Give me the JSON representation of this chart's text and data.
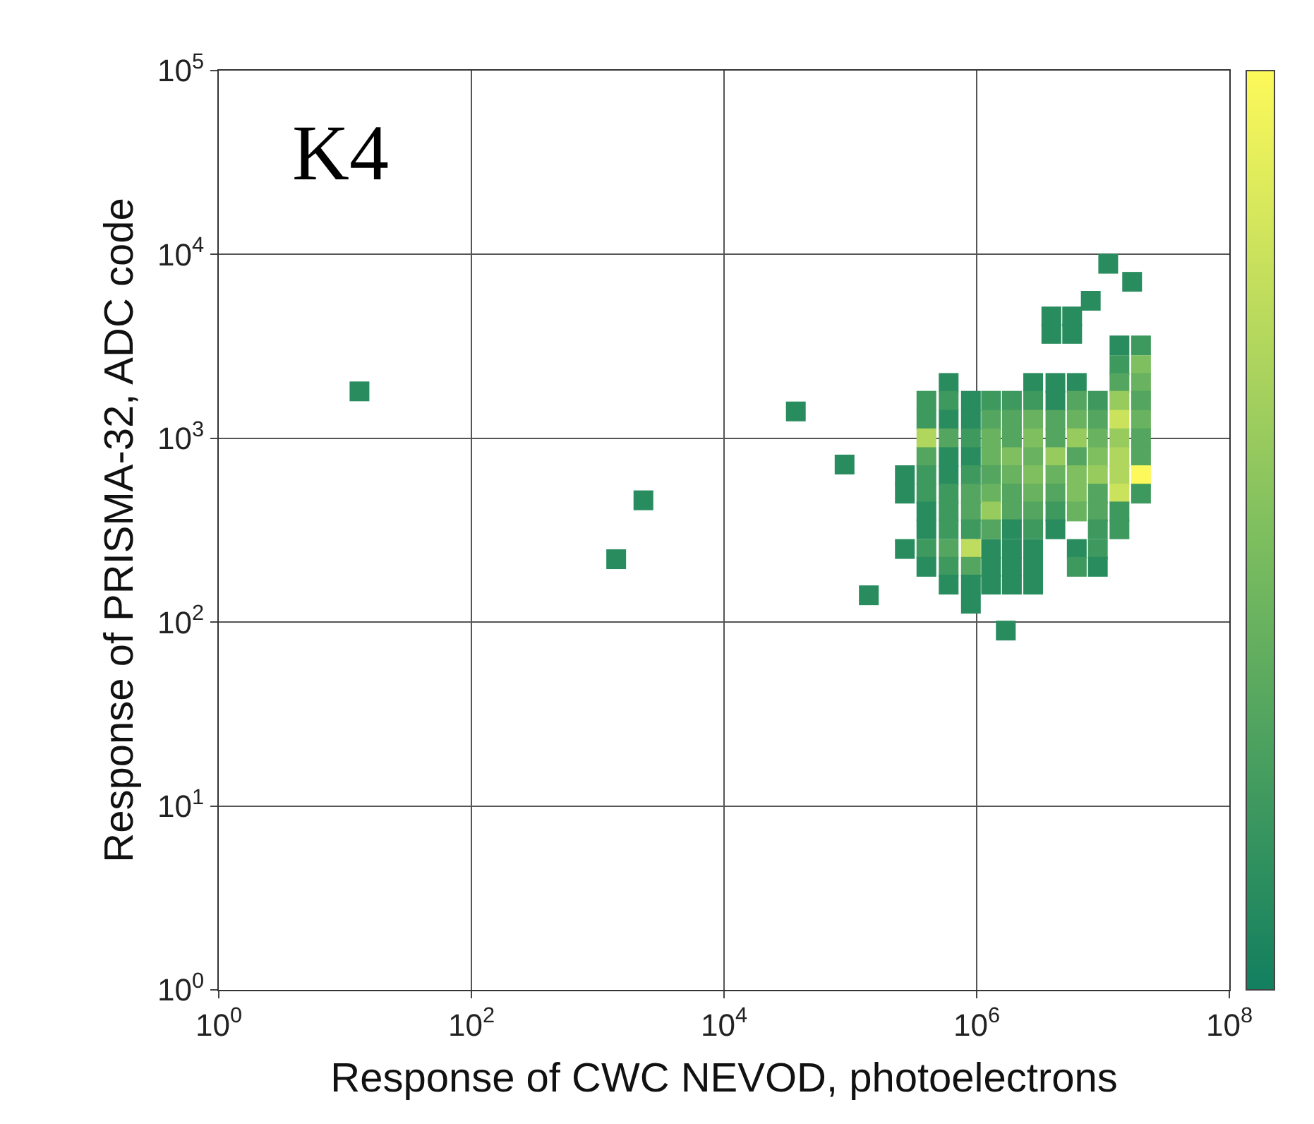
{
  "chart_data": {
    "type": "scatter",
    "marker": "square",
    "grid": true,
    "legend": false,
    "log": "xy",
    "xlabel": "Response of CWC NEVOD, photoelectrons",
    "ylabel": "Response of PRISMA-32, ADC code",
    "annotations": [
      "K4"
    ],
    "xlim": [
      1,
      100000000
    ],
    "ylim": [
      1,
      100000
    ],
    "xticks": [
      {
        "value": 1,
        "label": "10$^{0}$"
      },
      {
        "value": 100,
        "label": "10$^{2}$"
      },
      {
        "value": 10000,
        "label": "10$^{4}$"
      },
      {
        "value": 1000000,
        "label": "10$^{6}$"
      },
      {
        "value": 100000000,
        "label": "10$^{8}$"
      }
    ],
    "yticks": [
      {
        "value": 1,
        "label": "10$^{0}$"
      },
      {
        "value": 10,
        "label": "10$^{1}$"
      },
      {
        "value": 100,
        "label": "10$^{2}$"
      },
      {
        "value": 1000,
        "label": "10$^{3}$"
      },
      {
        "value": 10000,
        "label": "10$^{4}$"
      },
      {
        "value": 100000,
        "label": "10$^{5}$"
      }
    ],
    "x": [
      13,
      1400,
      2300,
      37000,
      90000,
      140000,
      1700000,
      11000000,
      17000000,
      8000000,
      5700000,
      3900000,
      3900000,
      5700000,
      13500000,
      20000000,
      13500000,
      20000000,
      600000,
      2800000,
      4200000,
      6200000,
      13500000,
      20000000,
      400000,
      600000,
      900000,
      1300000,
      1900000,
      2800000,
      4200000,
      6200000,
      9100000,
      13500000,
      20000000,
      400000,
      600000,
      900000,
      1300000,
      1900000,
      2800000,
      4200000,
      6200000,
      9100000,
      13500000,
      20000000,
      400000,
      600000,
      900000,
      1300000,
      1900000,
      2800000,
      4200000,
      6200000,
      9100000,
      13500000,
      20000000,
      400000,
      600000,
      900000,
      1300000,
      1900000,
      2800000,
      4200000,
      6200000,
      9100000,
      13500000,
      20000000,
      270000,
      400000,
      600000,
      900000,
      1300000,
      1900000,
      2800000,
      4200000,
      6200000,
      9100000,
      13500000,
      20000000,
      270000,
      400000,
      600000,
      900000,
      1300000,
      1900000,
      2800000,
      4200000,
      6200000,
      9100000,
      13500000,
      20000000,
      400000,
      600000,
      900000,
      1300000,
      1900000,
      2800000,
      4200000,
      6200000,
      9100000,
      13500000,
      400000,
      600000,
      900000,
      1300000,
      1900000,
      2800000,
      4200000,
      9100000,
      13500000,
      270000,
      400000,
      600000,
      900000,
      1300000,
      1900000,
      2800000,
      6200000,
      9100000,
      400000,
      600000,
      900000,
      1300000,
      1900000,
      2800000,
      6200000,
      9100000,
      600000,
      900000,
      1300000,
      1900000,
      2800000,
      900000
    ],
    "values": [
      1800,
      220,
      460,
      1400,
      720,
      140,
      90,
      8900,
      7100,
      5600,
      4600,
      4600,
      3700,
      3700,
      3200,
      3200,
      2500,
      2500,
      2000,
      2000,
      2000,
      2000,
      2000,
      2000,
      1600,
      1600,
      1600,
      1600,
      1600,
      1600,
      1600,
      1600,
      1600,
      1600,
      1600,
      1260,
      1260,
      1260,
      1260,
      1260,
      1260,
      1260,
      1260,
      1260,
      1260,
      1260,
      1000,
      1000,
      1000,
      1000,
      1000,
      1000,
      1000,
      1000,
      1000,
      1000,
      1000,
      790,
      790,
      790,
      790,
      790,
      790,
      790,
      790,
      790,
      790,
      790,
      630,
      630,
      630,
      630,
      630,
      630,
      630,
      630,
      630,
      630,
      630,
      630,
      500,
      500,
      500,
      500,
      500,
      500,
      500,
      500,
      500,
      500,
      500,
      500,
      400,
      400,
      400,
      400,
      400,
      400,
      400,
      400,
      400,
      400,
      320,
      320,
      320,
      320,
      320,
      320,
      320,
      320,
      320,
      250,
      250,
      250,
      250,
      250,
      250,
      250,
      250,
      250,
      200,
      200,
      200,
      200,
      200,
      200,
      200,
      200,
      160,
      160,
      160,
      160,
      160,
      126
    ],
    "colors": [
      "#288c5f",
      "#288c5f",
      "#288c5f",
      "#288c5f",
      "#288c5f",
      "#288c5f",
      "#288c5f",
      "#288c5f",
      "#288c5f",
      "#288c5f",
      "#288c5f",
      "#288c5f",
      "#288c5f",
      "#288c5f",
      "#288c5f",
      "#3e995f",
      "#3e995f",
      "#7fbf5f",
      "#288c5f",
      "#288c5f",
      "#288c5f",
      "#288c5f",
      "#53a55f",
      "#69b25f",
      "#3e995f",
      "#3e995f",
      "#288c5f",
      "#3e995f",
      "#3e995f",
      "#3e995f",
      "#288c5f",
      "#53a55f",
      "#3e995f",
      "#98cb5e",
      "#53a55f",
      "#3e995f",
      "#288c5f",
      "#288c5f",
      "#53a55f",
      "#53a55f",
      "#69b25f",
      "#53a55f",
      "#69b25f",
      "#53a55f",
      "#cbe25c",
      "#69b25f",
      "#b1d65d",
      "#53a55f",
      "#3e995f",
      "#69b25f",
      "#53a55f",
      "#7fbf5f",
      "#53a55f",
      "#98cb5e",
      "#69b25f",
      "#98cb5e",
      "#53a55f",
      "#53a55f",
      "#288c5f",
      "#288c5f",
      "#69b25f",
      "#7fbf5f",
      "#69b25f",
      "#98cb5e",
      "#53a55f",
      "#7fbf5f",
      "#b1d65d",
      "#53a55f",
      "#288c5f",
      "#3e995f",
      "#288c5f",
      "#3e995f",
      "#53a55f",
      "#69b25f",
      "#7fbf5f",
      "#69b25f",
      "#7fbf5f",
      "#98cb5e",
      "#b1d65d",
      "#fdf95a",
      "#288c5f",
      "#3e995f",
      "#3e995f",
      "#53a55f",
      "#69b25f",
      "#53a55f",
      "#69b25f",
      "#53a55f",
      "#7fbf5f",
      "#53a55f",
      "#cbe25c",
      "#3e995f",
      "#288c5f",
      "#3e995f",
      "#53a55f",
      "#98cb5e",
      "#53a55f",
      "#53a55f",
      "#3e995f",
      "#69b25f",
      "#53a55f",
      "#3e995f",
      "#288c5f",
      "#3e995f",
      "#3e995f",
      "#53a55f",
      "#288c5f",
      "#3e995f",
      "#288c5f",
      "#3e995f",
      "#3e995f",
      "#288c5f",
      "#3e995f",
      "#53a55f",
      "#bedc5d",
      "#288c5f",
      "#288c5f",
      "#288c5f",
      "#288c5f",
      "#3e995f",
      "#288c5f",
      "#3e995f",
      "#53a55f",
      "#288c5f",
      "#288c5f",
      "#288c5f",
      "#3e995f",
      "#288c5f",
      "#288c5f",
      "#288c5f",
      "#288c5f",
      "#288c5f",
      "#288c5f",
      "#288c5f"
    ]
  }
}
